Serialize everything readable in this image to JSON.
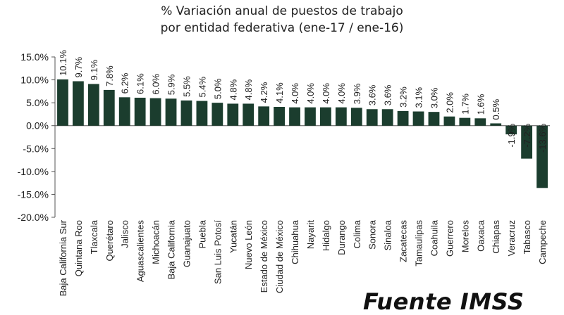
{
  "chart_data": {
    "type": "bar",
    "title": "% Variación anual de puestos de trabajo",
    "subtitle": "por entidad federativa (ene-17 / ene-16)",
    "xlabel": "",
    "ylabel": "",
    "ylim": [
      -20,
      15
    ],
    "yticks": [
      15,
      10,
      5,
      0,
      -5,
      -10,
      -15,
      -20
    ],
    "ytick_labels": [
      "15.0%",
      "10.0%",
      "5.0%",
      "0.0%",
      "-5.0%",
      "-10.0%",
      "-15.0%",
      "-20.0%"
    ],
    "grid": false,
    "bar_color": "#1b3d2e",
    "categories": [
      "Baja California Sur",
      "Quintana Roo",
      "Tlaxcala",
      "Querétaro",
      "Jalisco",
      "Aguascalientes",
      "Michoacán",
      "Baja California",
      "Guanajuato",
      "Puebla",
      "San Luis Potosí",
      "Yucatán",
      "Nuevo León",
      "Estado de México",
      "Ciudad de México",
      "Chihuahua",
      "Nayarit",
      "Hidalgo",
      "Durango",
      "Colima",
      "Sonora",
      "Sinaloa",
      "Zacatecas",
      "Tamaulipas",
      "Coahuila",
      "Guerrero",
      "Morelos",
      "Oaxaca",
      "Chiapas",
      "Veracruz",
      "Tabasco",
      "Campeche"
    ],
    "values": [
      10.1,
      9.7,
      9.1,
      7.8,
      6.2,
      6.1,
      6.0,
      5.9,
      5.5,
      5.4,
      5.0,
      4.8,
      4.8,
      4.2,
      4.1,
      4.0,
      4.0,
      4.0,
      4.0,
      3.9,
      3.6,
      3.6,
      3.2,
      3.1,
      3.0,
      2.0,
      1.7,
      1.6,
      0.5,
      -1.9,
      -7.2,
      -13.6
    ],
    "data_labels": [
      "10.1%",
      "9.7%",
      "9.1%",
      "7.8%",
      "6.2%",
      "6.1%",
      "6.0%",
      "5.9%",
      "5.5%",
      "5.4%",
      "5.0%",
      "4.8%",
      "4.8%",
      "4.2%",
      "4.1%",
      "4.0%",
      "4.0%",
      "4.0%",
      "4.0%",
      "3.9%",
      "3.6%",
      "3.6%",
      "3.2%",
      "3.1%",
      "3.0%",
      "2.0%",
      "1.7%",
      "1.6%",
      "0.5%",
      "-1.9%",
      "-7.2%",
      "-13.6%"
    ]
  },
  "source": "Fuente IMSS"
}
